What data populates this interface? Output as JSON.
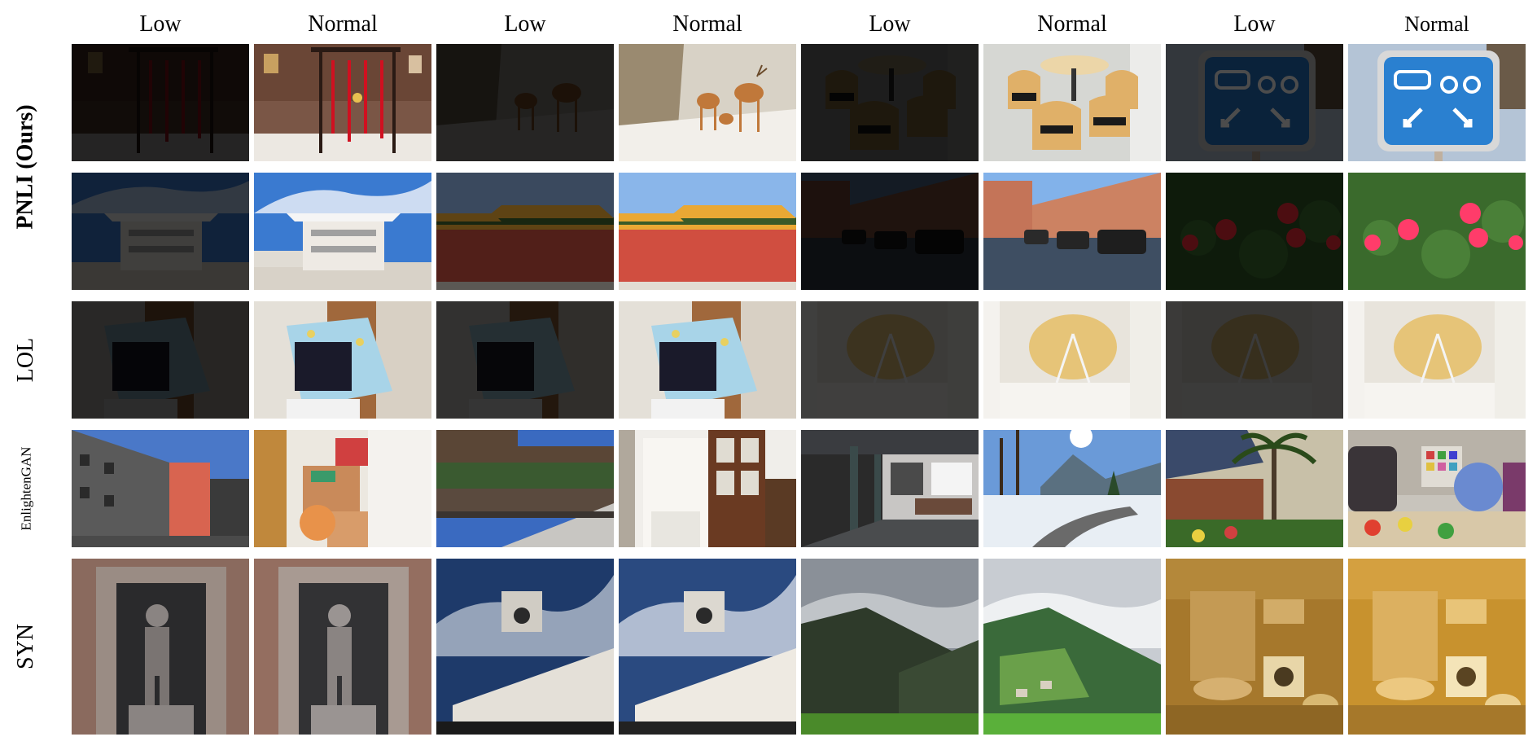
{
  "column_headers": [
    "Low",
    "Normal",
    "Low",
    "Normal",
    "Low",
    "Normal",
    "Low",
    "Normal"
  ],
  "row_labels": [
    "PNLI (Ours)",
    "LOL",
    "EnlightenGAN",
    "SYN"
  ],
  "rows": [
    {
      "group": "PNLI (Ours)",
      "scenes": [
        "chinese-knot-ornaments",
        "deer-figurines",
        "chairs-and-table",
        "road-sign-car-bicycle"
      ]
    },
    {
      "group": "PNLI (Ours)",
      "scenes": [
        "modern-building-blue-sky",
        "palace-red-wall",
        "parked-cars-brick-buildings",
        "red-roses"
      ]
    },
    {
      "group": "LOL",
      "scenes": [
        "covered-box-in-room",
        "covered-box-in-room",
        "cake-on-shelf",
        "cake-on-shelf"
      ]
    },
    {
      "group": "EnlightenGAN",
      "scenes": [
        "street-buildings",
        "room-doorway",
        "arcade-corridor",
        "palm-tree-yard"
      ]
    },
    {
      "group": "SYN",
      "scenes": [
        "stone-statue-niche",
        "clock-tower-building",
        "mountain-valley",
        "bathroom-interior"
      ]
    }
  ]
}
